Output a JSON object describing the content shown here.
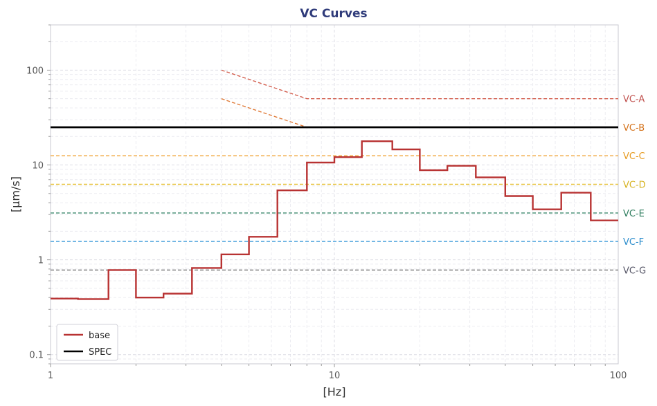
{
  "chart_data": {
    "type": "line",
    "title": "VC Curves",
    "xlabel": "[Hz]",
    "ylabel": "[µm/s]",
    "xscale": "log",
    "yscale": "log",
    "xlim": [
      1,
      100
    ],
    "ylim": [
      0.08,
      300
    ],
    "grid": true,
    "legend_position": "bottom-left",
    "x_ticks": [
      {
        "value": 1,
        "label": "1"
      },
      {
        "value": 10,
        "label": "10"
      },
      {
        "value": 100,
        "label": "100"
      }
    ],
    "y_ticks": [
      {
        "value": 0.1,
        "label": "0.1"
      },
      {
        "value": 1,
        "label": "1"
      },
      {
        "value": 10,
        "label": "10"
      },
      {
        "value": 100,
        "label": "100"
      }
    ],
    "series": [
      {
        "name": "base",
        "style": "step",
        "color": "#b83232",
        "points": [
          [
            1,
            0.39
          ],
          [
            1.25,
            0.39
          ],
          [
            1.25,
            0.385
          ],
          [
            1.6,
            0.385
          ],
          [
            1.6,
            0.78
          ],
          [
            2,
            0.78
          ],
          [
            2,
            0.4
          ],
          [
            2.5,
            0.4
          ],
          [
            2.5,
            0.44
          ],
          [
            3.15,
            0.44
          ],
          [
            3.15,
            0.82
          ],
          [
            4,
            0.82
          ],
          [
            4,
            1.14
          ],
          [
            5,
            1.14
          ],
          [
            5,
            1.75
          ],
          [
            6.3,
            1.75
          ],
          [
            6.3,
            5.4
          ],
          [
            8,
            5.4
          ],
          [
            8,
            10.6
          ],
          [
            10,
            10.6
          ],
          [
            10,
            12.1
          ],
          [
            12.5,
            12.1
          ],
          [
            12.5,
            17.8
          ],
          [
            16,
            17.8
          ],
          [
            16,
            14.6
          ],
          [
            20,
            14.6
          ],
          [
            20,
            8.8
          ],
          [
            25,
            8.8
          ],
          [
            25,
            9.8
          ],
          [
            31.5,
            9.8
          ],
          [
            31.5,
            7.4
          ],
          [
            40,
            7.4
          ],
          [
            40,
            4.7
          ],
          [
            50,
            4.7
          ],
          [
            50,
            3.4
          ],
          [
            63,
            3.4
          ],
          [
            63,
            5.1
          ],
          [
            80,
            5.1
          ],
          [
            80,
            2.6
          ],
          [
            100,
            2.6
          ]
        ]
      },
      {
        "name": "SPEC",
        "style": "solid",
        "color": "#000000",
        "points": [
          [
            1,
            25
          ],
          [
            100,
            25
          ]
        ]
      }
    ],
    "reference_curves": [
      {
        "label": "VC-A",
        "color": "#d35f4f",
        "text_color": "#c0504d",
        "points": [
          [
            4,
            100
          ],
          [
            8,
            50
          ],
          [
            100,
            50
          ]
        ]
      },
      {
        "label": "VC-B",
        "color": "#e07b39",
        "text_color": "#d4721a",
        "points": [
          [
            4,
            50
          ],
          [
            8,
            25
          ],
          [
            100,
            25
          ]
        ]
      },
      {
        "label": "VC-C",
        "color": "#f0a43a",
        "text_color": "#e69a1f",
        "points": [
          [
            1,
            12.5
          ],
          [
            100,
            12.5
          ]
        ]
      },
      {
        "label": "VC-D",
        "color": "#e8c440",
        "text_color": "#d6b21e",
        "points": [
          [
            1,
            6.25
          ],
          [
            100,
            6.25
          ]
        ]
      },
      {
        "label": "VC-E",
        "color": "#3e8a6e",
        "text_color": "#2e7d5e",
        "points": [
          [
            1,
            3.12
          ],
          [
            100,
            3.12
          ]
        ]
      },
      {
        "label": "VC-F",
        "color": "#3a9ad9",
        "text_color": "#2a8ccc",
        "points": [
          [
            1,
            1.56
          ],
          [
            100,
            1.56
          ]
        ]
      },
      {
        "label": "VC-G",
        "color": "#777777",
        "text_color": "#555566",
        "points": [
          [
            1,
            0.78
          ],
          [
            100,
            0.78
          ]
        ]
      }
    ],
    "legend": [
      {
        "label": "base",
        "color": "#b83232"
      },
      {
        "label": "SPEC",
        "color": "#000000"
      }
    ]
  }
}
